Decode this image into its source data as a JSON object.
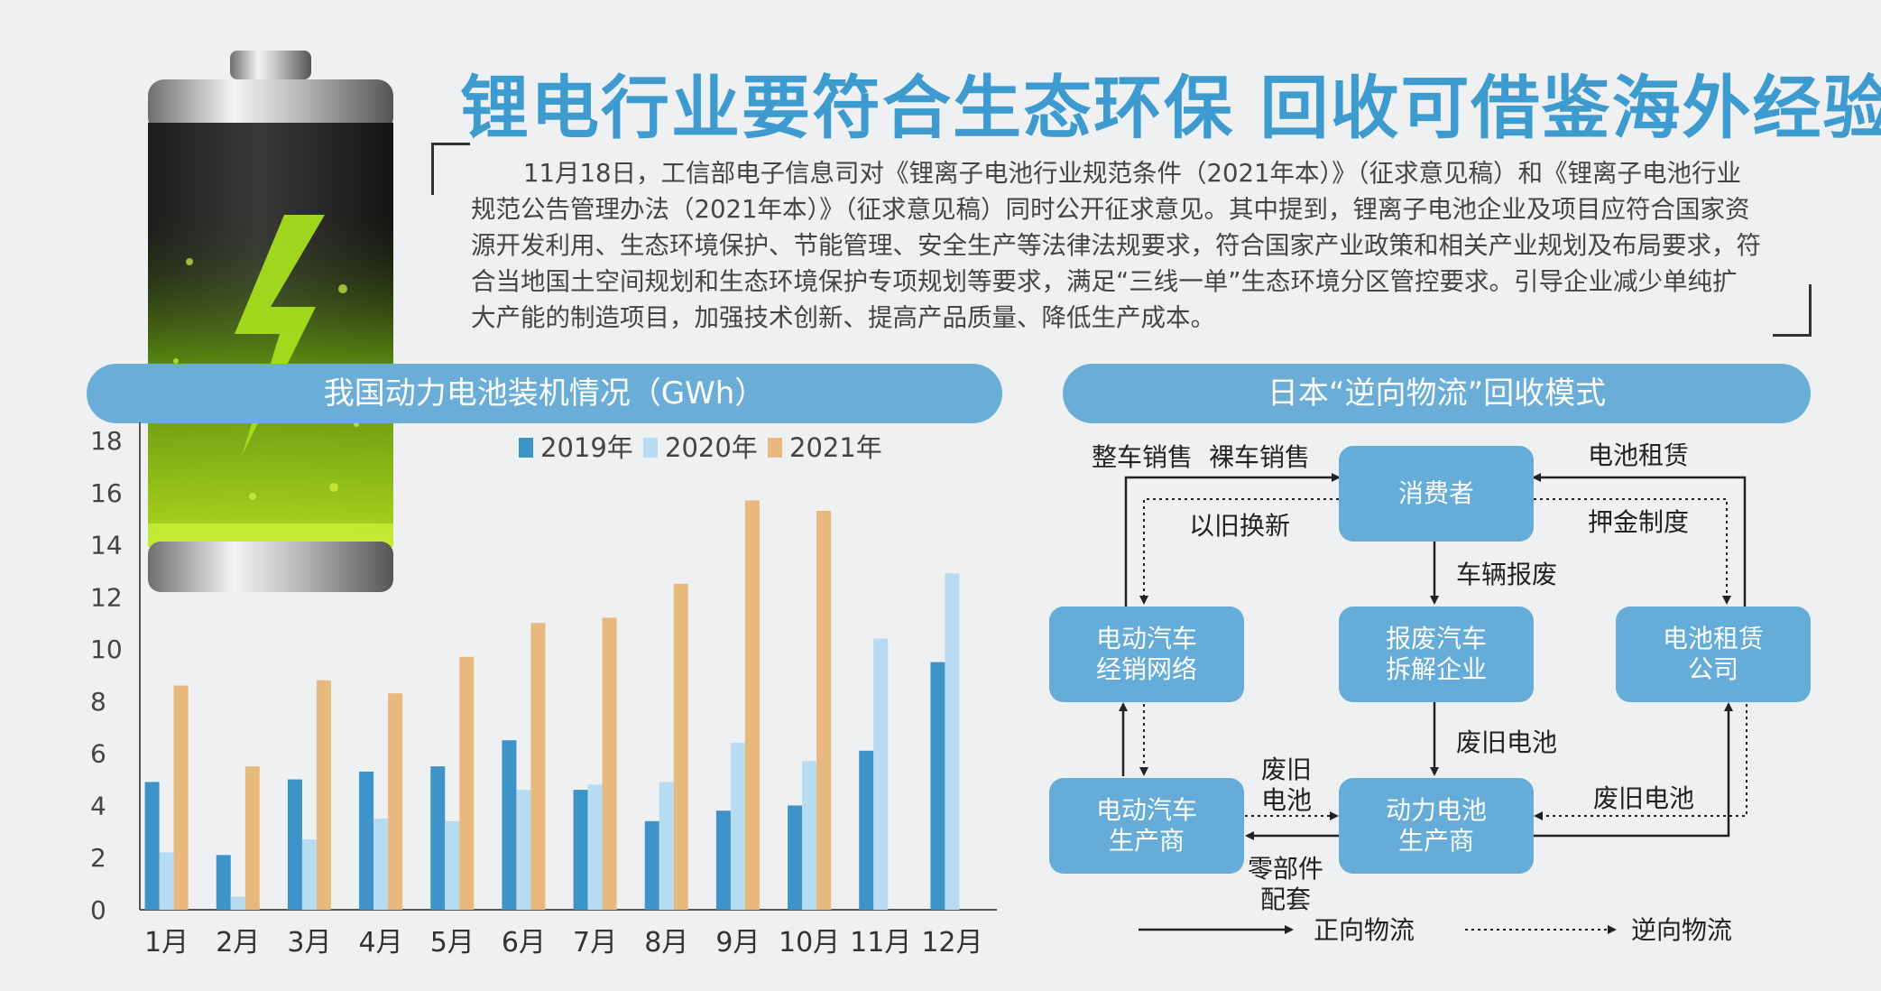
{
  "headline": "锂电行业要符合生态环保 回收可借鉴海外经验",
  "intro": "11月18日，工信部电子信息司对《锂离子电池行业规范条件（2021年本）》（征求意见稿）和《锂离子电池行业规范公告管理办法（2021年本）》（征求意见稿）同时公开征求意见。其中提到，锂离子电池企业及项目应符合国家资源开发利用、生态环境保护、节能管理、安全生产等法律法规要求，符合国家产业政策和相关产业规划及布局要求，符合当地国土空间规划和生态环境保护专项规划等要求，满足“三线一单”生态环境分区管控要求。引导企业减少单纯扩大产能的制造项目，加强技术创新、提高产品质量、降低生产成本。",
  "chart_data": {
    "type": "bar",
    "title": "我国动力电池装机情况（GWh）",
    "categories": [
      "1月",
      "2月",
      "3月",
      "4月",
      "5月",
      "6月",
      "7月",
      "8月",
      "9月",
      "10月",
      "11月",
      "12月"
    ],
    "series": [
      {
        "name": "2019年",
        "color": "#3e93c9",
        "values": [
          4.9,
          2.1,
          5.0,
          5.3,
          5.5,
          6.5,
          4.6,
          3.4,
          3.8,
          4.0,
          6.1,
          9.5
        ]
      },
      {
        "name": "2020年",
        "color": "#b7dbf1",
        "values": [
          2.2,
          0.5,
          2.7,
          3.5,
          3.4,
          4.6,
          4.8,
          4.9,
          6.4,
          5.7,
          10.4,
          12.9
        ]
      },
      {
        "name": "2021年",
        "color": "#e8b97c",
        "values": [
          8.6,
          5.5,
          8.8,
          8.3,
          9.7,
          11.0,
          11.2,
          12.5,
          15.7,
          15.3,
          null,
          null
        ]
      }
    ],
    "ylim": [
      0,
      18
    ],
    "yticks": [
      0,
      2,
      4,
      6,
      8,
      10,
      12,
      14,
      16,
      18
    ],
    "legend": "top",
    "grid": false
  },
  "flow": {
    "title": "日本“逆向物流”回收模式",
    "nodes": {
      "consumer": "消费者",
      "dealer": "电动汽车经销网络",
      "dismantler": "报废汽车拆解企业",
      "leasing": "电池租赁公司",
      "ev_maker": "电动汽车生产商",
      "battery_maker": "动力电池生产商"
    },
    "labels": {
      "whole_sale": "整车销售",
      "bare_sale": "裸车销售",
      "trade_in": "以旧换新",
      "battery_rental": "电池租赁",
      "deposit": "押金制度",
      "scrap": "车辆报废",
      "waste_battery_1": "废旧电池",
      "waste_battery_2": "废旧电池",
      "waste_battery_3": "废旧电池",
      "parts": "零部件配套"
    },
    "legend": {
      "forward": "正向物流",
      "reverse": "逆向物流"
    }
  }
}
